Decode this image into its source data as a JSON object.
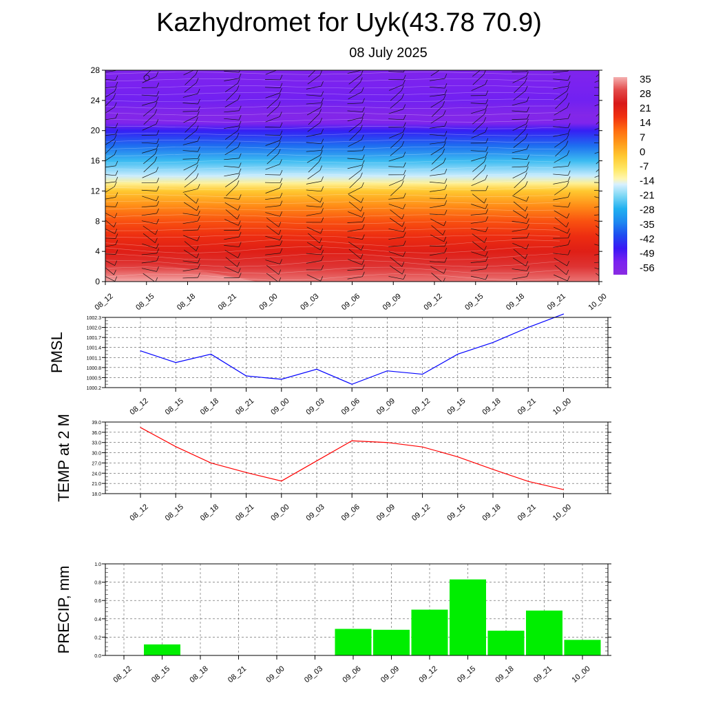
{
  "title": "Kazhydromet for Uyk(43.78 70.9)",
  "subtitle": "08 July 2025",
  "time_labels": [
    "08_12",
    "08_15",
    "08_18",
    "08_21",
    "09_00",
    "09_03",
    "09_06",
    "09_09",
    "09_12",
    "09_15",
    "09_18",
    "09_21",
    "10_00"
  ],
  "chart_data": [
    {
      "type": "heatmap",
      "name": "temperature-cross-section",
      "ylim": [
        0,
        28
      ],
      "y_ticks": [
        "0",
        "4",
        "8",
        "12",
        "16",
        "20",
        "24",
        "28"
      ],
      "colorbar_labels": [
        "35",
        "28",
        "21",
        "14",
        "7",
        "0",
        "-7",
        "-14",
        "-21",
        "-28",
        "-35",
        "-42",
        "-49",
        "-56"
      ],
      "colorbar_range": [
        -63,
        42
      ],
      "approx_temperature_profile": {
        "height": [
          0,
          2,
          4,
          6,
          8,
          10,
          12,
          13,
          14,
          16,
          18,
          20,
          21,
          22,
          24,
          26,
          28
        ],
        "temperature": [
          38,
          32,
          26,
          22,
          17,
          9,
          0,
          -10,
          -16,
          -26,
          -38,
          -48,
          -58,
          -60,
          -55,
          -56,
          -58
        ]
      },
      "wind_barbs": true
    },
    {
      "type": "line",
      "ylabel": "PMSL",
      "ylim": [
        1000.2,
        1002.3
      ],
      "y_ticks": [
        "1002.3",
        "1002.0",
        "1001.7",
        "1001.4",
        "1001.1",
        "1000.8",
        "1000.5",
        "1000.2"
      ],
      "series": [
        {
          "color": "#0000ff",
          "values": [
            1001.3,
            1000.95,
            1001.2,
            1000.55,
            1000.45,
            1000.75,
            1000.3,
            1000.7,
            1000.6,
            1001.2,
            1001.55,
            1002.0,
            1002.4
          ]
        }
      ],
      "grid": true
    },
    {
      "type": "line",
      "ylabel": "TEMP at 2 M",
      "ylim": [
        18.0,
        39.0
      ],
      "y_ticks": [
        "39.0",
        "36.0",
        "33.0",
        "30.0",
        "27.0",
        "24.0",
        "21.0",
        "18.0"
      ],
      "series": [
        {
          "color": "#ff0000",
          "values": [
            37.4,
            31.8,
            27.0,
            24.2,
            21.7,
            27.6,
            33.5,
            33.0,
            31.7,
            28.8,
            25.1,
            21.6,
            19.2
          ]
        }
      ],
      "grid": true
    },
    {
      "type": "bar",
      "ylabel": "PRECIP, mm",
      "ylim": [
        0.0,
        1.0
      ],
      "y_ticks": [
        "1.0",
        "0.8",
        "0.6",
        "0.4",
        "0.2",
        "0.0"
      ],
      "categories": [
        "08_12",
        "08_15",
        "08_18",
        "08_21",
        "09_00",
        "09_03",
        "09_06",
        "09_09",
        "09_12",
        "09_15",
        "09_18",
        "09_21",
        "10_00"
      ],
      "values": [
        0.0,
        0.12,
        0.0,
        0.0,
        0.0,
        0.0,
        0.29,
        0.28,
        0.5,
        0.83,
        0.27,
        0.49,
        0.17
      ],
      "color": "#00ee00",
      "grid": true
    }
  ]
}
